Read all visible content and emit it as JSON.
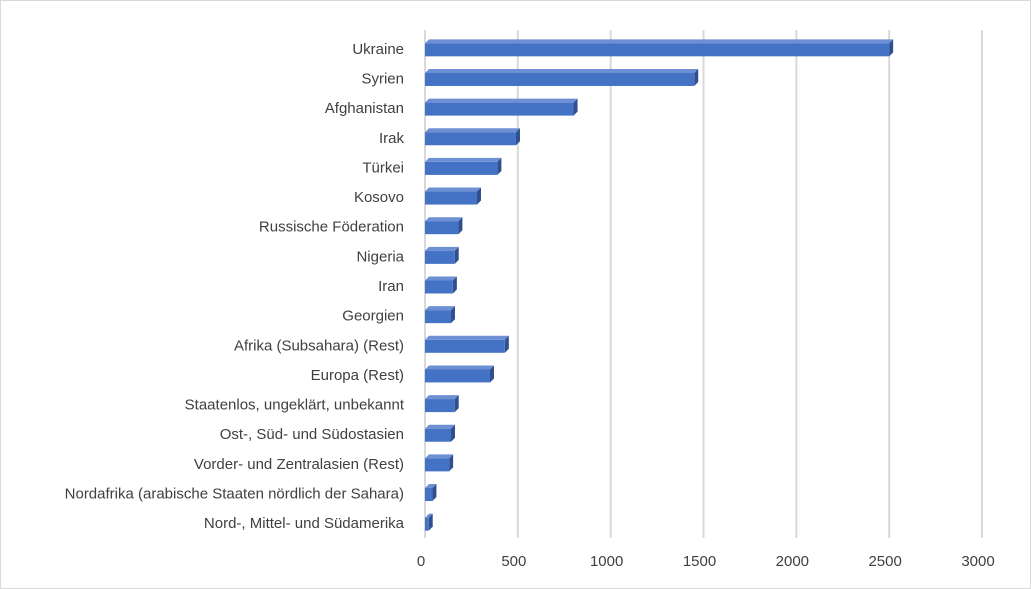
{
  "chart_data": {
    "type": "bar",
    "orientation": "horizontal",
    "title": "",
    "xlabel": "",
    "ylabel": "",
    "categories": [
      "Ukraine",
      "Syrien",
      "Afghanistan",
      "Irak",
      "Türkei",
      "Kosovo",
      "Russische Föderation",
      "Nigeria",
      "Iran",
      "Georgien",
      "Afrika (Subsahara) (Rest)",
      "Europa (Rest)",
      "Staatenlos, ungeklärt, unbekannt",
      "Ost-, Süd- und Südostasien",
      "Vorder- und Zentralasien (Rest)",
      "Nordafrika (arabische Staaten nördlich der Sahara)",
      "Nord-, Mittel- und Südamerika"
    ],
    "values": [
      2500,
      1450,
      800,
      490,
      390,
      280,
      180,
      160,
      150,
      140,
      430,
      350,
      160,
      140,
      130,
      40,
      20
    ],
    "xlim": [
      0,
      3000
    ],
    "x_ticks": [
      "0",
      "500",
      "1000",
      "1500",
      "2000",
      "2500",
      "3000"
    ],
    "grid": "vertical",
    "legend": "none",
    "bar_color": "#4472c4",
    "bar_side_color": "#2f4f8f",
    "bar_top_color": "#6d90d4",
    "grid_color": "#d9d9d9",
    "label_color": "#404040"
  }
}
